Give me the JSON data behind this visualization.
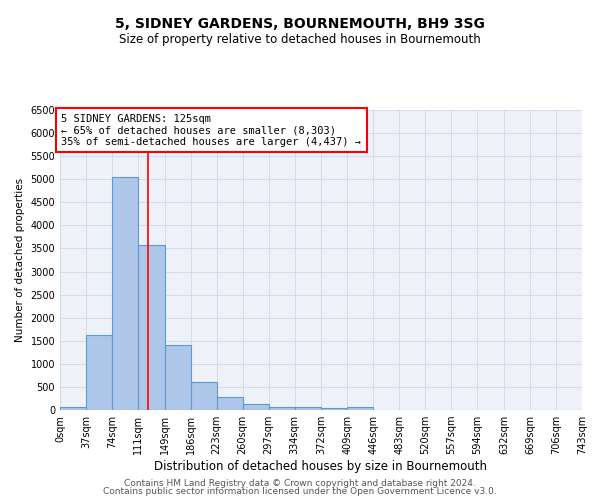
{
  "title": "5, SIDNEY GARDENS, BOURNEMOUTH, BH9 3SG",
  "subtitle": "Size of property relative to detached houses in Bournemouth",
  "xlabel": "Distribution of detached houses by size in Bournemouth",
  "ylabel": "Number of detached properties",
  "bin_edges": [
    0,
    37,
    74,
    111,
    149,
    186,
    223,
    260,
    297,
    334,
    372,
    409,
    446,
    483,
    520,
    557,
    594,
    632,
    669,
    706,
    743
  ],
  "bar_heights": [
    65,
    1625,
    5050,
    3575,
    1400,
    600,
    290,
    140,
    75,
    55,
    50,
    55,
    0,
    0,
    0,
    0,
    0,
    0,
    0,
    0
  ],
  "bar_color": "#aec6e8",
  "bar_edgecolor": "#5b9bd5",
  "bar_linewidth": 0.8,
  "vline_x": 125,
  "vline_color": "red",
  "vline_linewidth": 1.2,
  "annotation_line1": "5 SIDNEY GARDENS: 125sqm",
  "annotation_line2": "← 65% of detached houses are smaller (8,303)",
  "annotation_line3": "35% of semi-detached houses are larger (4,437) →",
  "annotation_box_color": "white",
  "annotation_box_edgecolor": "red",
  "annotation_fontsize": 7.5,
  "ylim": [
    0,
    6500
  ],
  "xlim": [
    0,
    743
  ],
  "yticks": [
    0,
    500,
    1000,
    1500,
    2000,
    2500,
    3000,
    3500,
    4000,
    4500,
    5000,
    5500,
    6000,
    6500
  ],
  "xtick_labels": [
    "0sqm",
    "37sqm",
    "74sqm",
    "111sqm",
    "149sqm",
    "186sqm",
    "223sqm",
    "260sqm",
    "297sqm",
    "334sqm",
    "372sqm",
    "409sqm",
    "446sqm",
    "483sqm",
    "520sqm",
    "557sqm",
    "594sqm",
    "632sqm",
    "669sqm",
    "706sqm",
    "743sqm"
  ],
  "grid_color": "#d0d8e8",
  "background_color": "#eef2f8",
  "footer_line1": "Contains HM Land Registry data © Crown copyright and database right 2024.",
  "footer_line2": "Contains public sector information licensed under the Open Government Licence v3.0.",
  "title_fontsize": 10,
  "subtitle_fontsize": 8.5,
  "xlabel_fontsize": 8.5,
  "ylabel_fontsize": 7.5,
  "tick_fontsize": 7,
  "footer_fontsize": 6.5
}
